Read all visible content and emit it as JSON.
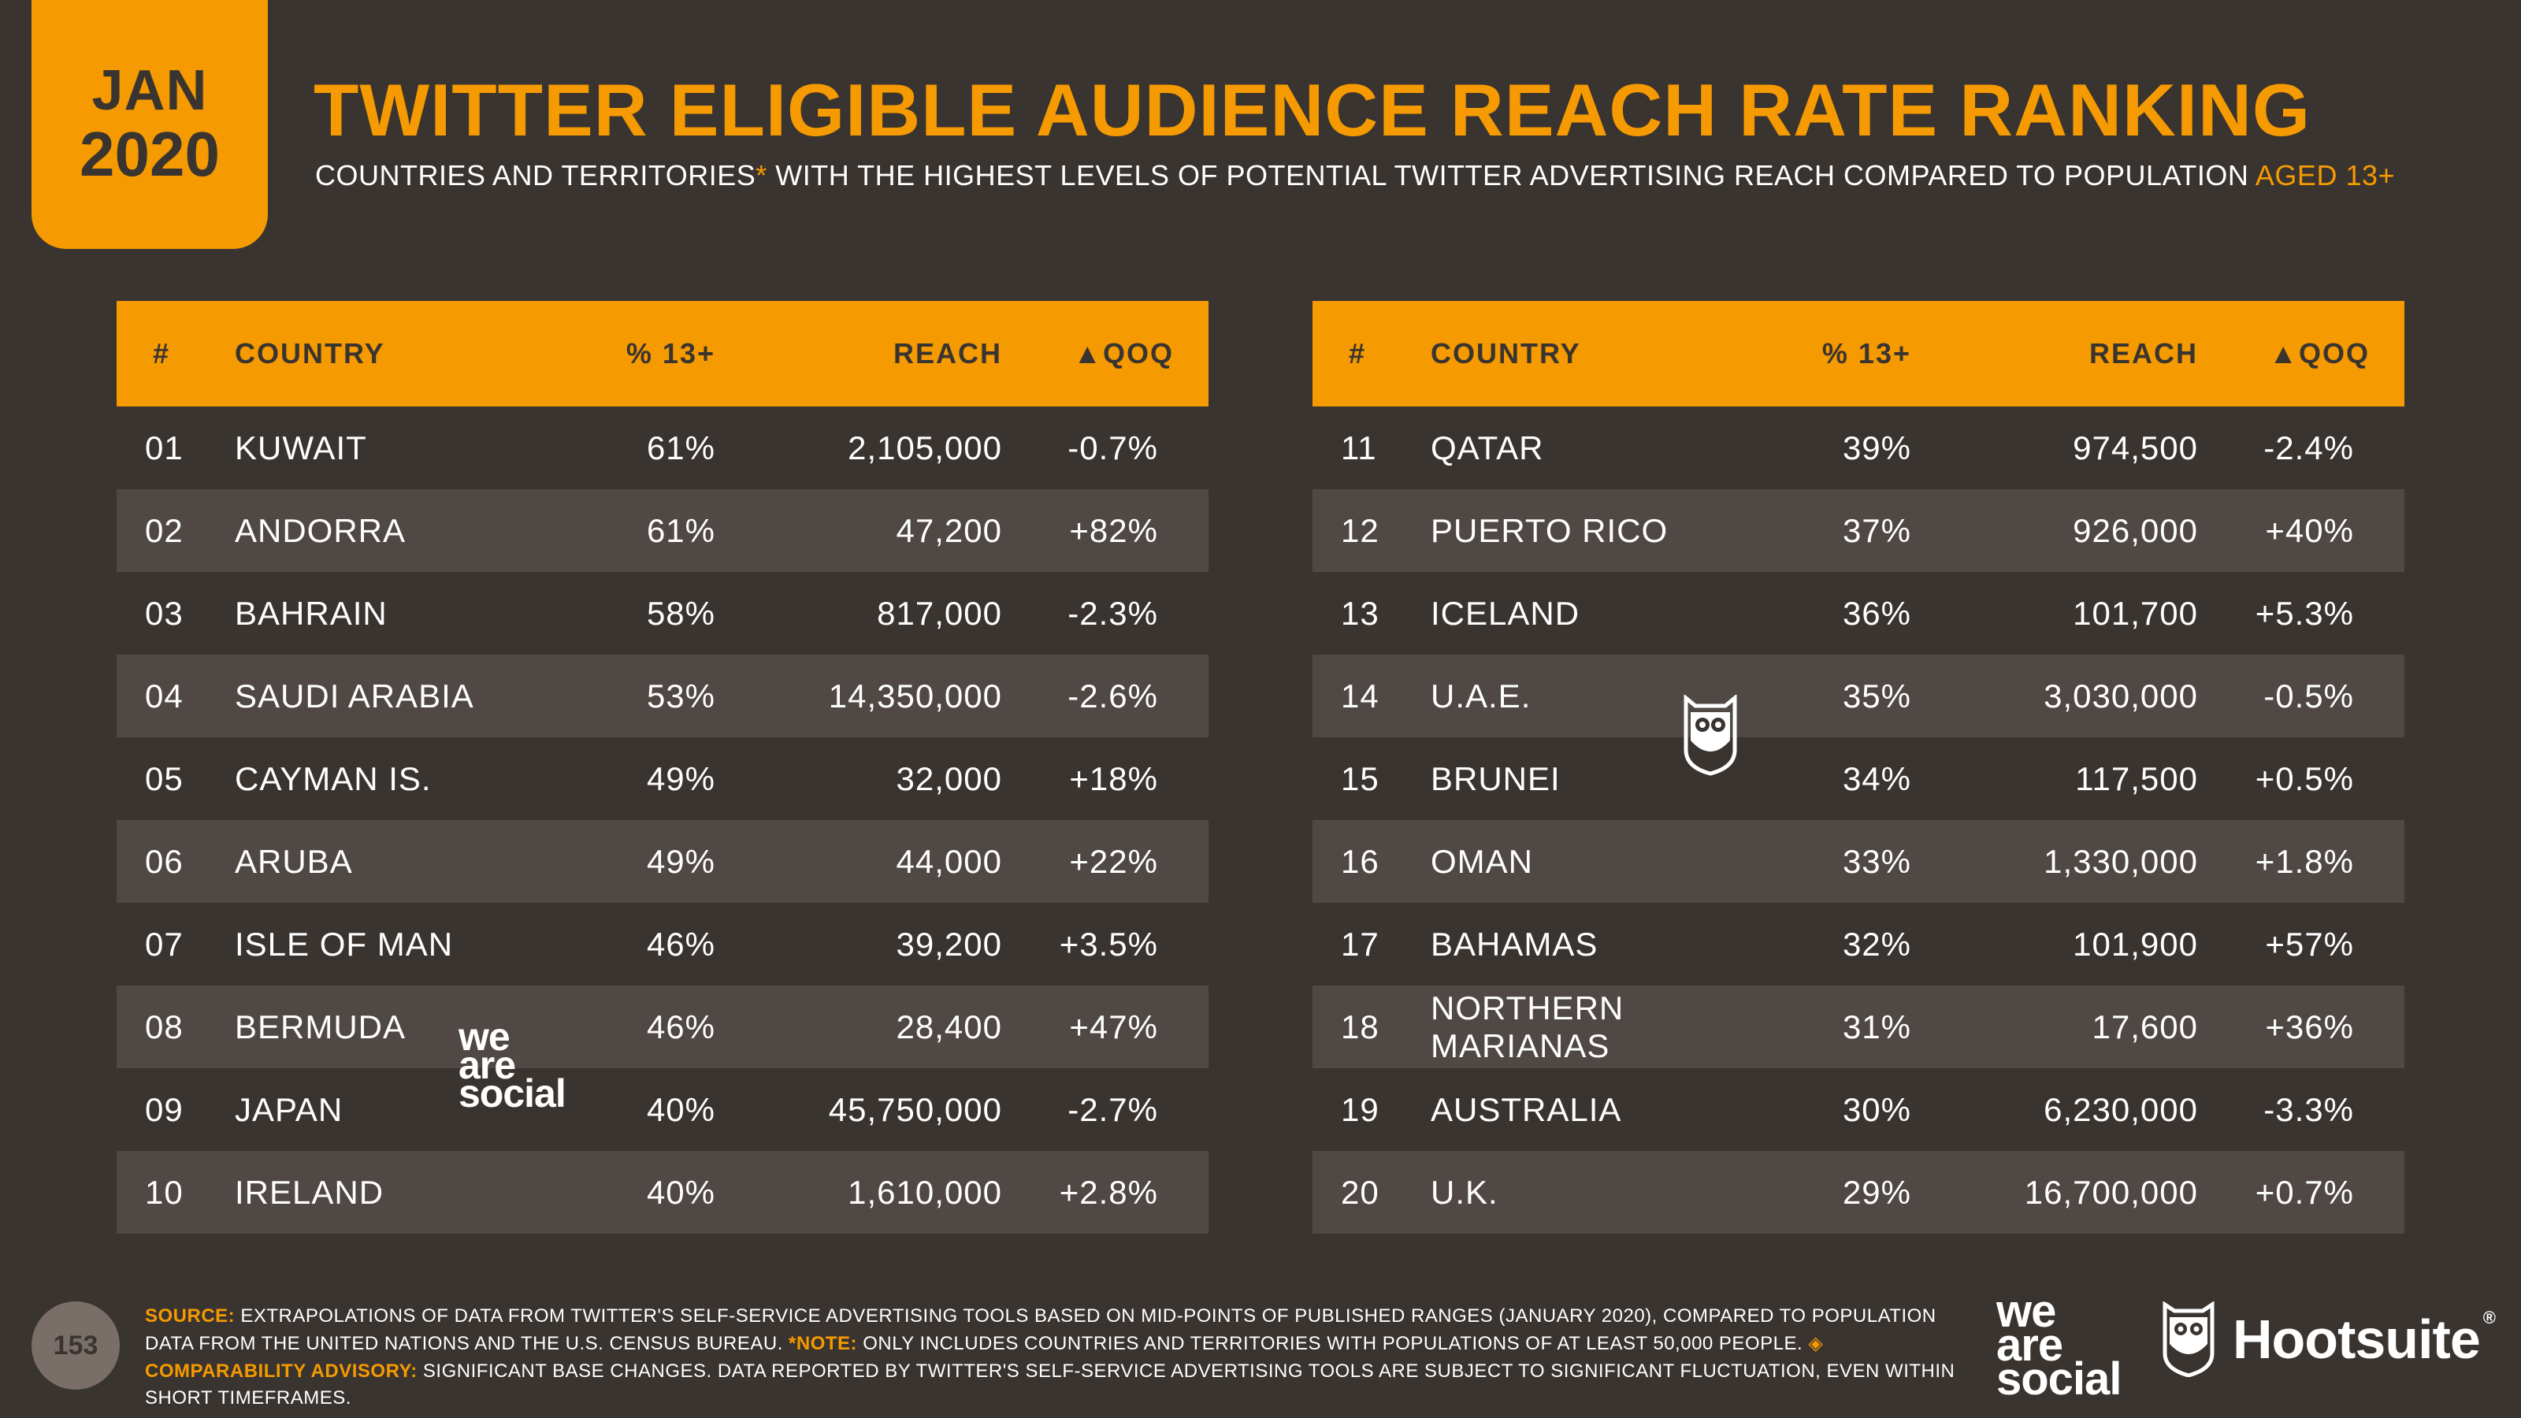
{
  "badge": {
    "month": "JAN",
    "year": "2020"
  },
  "title": "TWITTER ELIGIBLE AUDIENCE REACH RATE RANKING",
  "subtitle": {
    "main": "COUNTRIES AND TERRITORIES",
    "asterisk": "*",
    "rest": " WITH THE HIGHEST LEVELS OF POTENTIAL TWITTER ADVERTISING REACH COMPARED TO POPULATION ",
    "age": "AGED 13+"
  },
  "table_headers": {
    "num": "#",
    "country": "COUNTRY",
    "pct": "% 13+",
    "reach": "REACH",
    "qoq": "▲QOQ"
  },
  "left_rows": [
    {
      "num": "01",
      "country": "KUWAIT",
      "pct": "61%",
      "reach": "2,105,000",
      "qoq": "-0.7%"
    },
    {
      "num": "02",
      "country": "ANDORRA",
      "pct": "61%",
      "reach": "47,200",
      "qoq": "+82%"
    },
    {
      "num": "03",
      "country": "BAHRAIN",
      "pct": "58%",
      "reach": "817,000",
      "qoq": "-2.3%"
    },
    {
      "num": "04",
      "country": "SAUDI ARABIA",
      "pct": "53%",
      "reach": "14,350,000",
      "qoq": "-2.6%"
    },
    {
      "num": "05",
      "country": "CAYMAN IS.",
      "pct": "49%",
      "reach": "32,000",
      "qoq": "+18%"
    },
    {
      "num": "06",
      "country": "ARUBA",
      "pct": "49%",
      "reach": "44,000",
      "qoq": "+22%"
    },
    {
      "num": "07",
      "country": "ISLE OF MAN",
      "pct": "46%",
      "reach": "39,200",
      "qoq": "+3.5%"
    },
    {
      "num": "08",
      "country": "BERMUDA",
      "pct": "46%",
      "reach": "28,400",
      "qoq": "+47%"
    },
    {
      "num": "09",
      "country": "JAPAN",
      "pct": "40%",
      "reach": "45,750,000",
      "qoq": "-2.7%"
    },
    {
      "num": "10",
      "country": "IRELAND",
      "pct": "40%",
      "reach": "1,610,000",
      "qoq": "+2.8%"
    }
  ],
  "right_rows": [
    {
      "num": "11",
      "country": "QATAR",
      "pct": "39%",
      "reach": "974,500",
      "qoq": "-2.4%"
    },
    {
      "num": "12",
      "country": "PUERTO RICO",
      "pct": "37%",
      "reach": "926,000",
      "qoq": "+40%"
    },
    {
      "num": "13",
      "country": "ICELAND",
      "pct": "36%",
      "reach": "101,700",
      "qoq": "+5.3%"
    },
    {
      "num": "14",
      "country": "U.A.E.",
      "pct": "35%",
      "reach": "3,030,000",
      "qoq": "-0.5%"
    },
    {
      "num": "15",
      "country": "BRUNEI",
      "pct": "34%",
      "reach": "117,500",
      "qoq": "+0.5%"
    },
    {
      "num": "16",
      "country": "OMAN",
      "pct": "33%",
      "reach": "1,330,000",
      "qoq": "+1.8%"
    },
    {
      "num": "17",
      "country": "BAHAMAS",
      "pct": "32%",
      "reach": "101,900",
      "qoq": "+57%"
    },
    {
      "num": "18",
      "country": "NORTHERN MARIANAS",
      "pct": "31%",
      "reach": "17,600",
      "qoq": "+36%"
    },
    {
      "num": "19",
      "country": "AUSTRALIA",
      "pct": "30%",
      "reach": "6,230,000",
      "qoq": "-3.3%"
    },
    {
      "num": "20",
      "country": "U.K.",
      "pct": "29%",
      "reach": "16,700,000",
      "qoq": "+0.7%"
    }
  ],
  "watermark": {
    "line1": "we",
    "line2": "are",
    "line3": "social"
  },
  "footer": {
    "page_number": "153",
    "source_label": "SOURCE:",
    "source_text": " EXTRAPOLATIONS OF DATA FROM TWITTER'S SELF-SERVICE ADVERTISING TOOLS BASED ON MID-POINTS OF PUBLISHED RANGES (JANUARY 2020), COMPARED TO POPULATION DATA FROM THE UNITED NATIONS AND THE U.S. CENSUS BUREAU. ",
    "note_label": "*NOTE:",
    "note_text": " ONLY INCLUDES COUNTRIES AND TERRITORIES WITH POPULATIONS OF AT LEAST 50,000 PEOPLE. ",
    "advisory_label": "◈ COMPARABILITY ADVISORY:",
    "advisory_text": " SIGNIFICANT BASE CHANGES. DATA REPORTED BY TWITTER'S SELF-SERVICE ADVERTISING TOOLS ARE SUBJECT TO SIGNIFICANT FLUCTUATION, EVEN WITHIN SHORT TIMEFRAMES."
  },
  "logos": {
    "was_1": "we",
    "was_2": "are",
    "was_3": "social",
    "hootsuite": "Hootsuite",
    "reg": "®"
  },
  "colors": {
    "accent": "#f59a00",
    "background": "#3a3430",
    "row_alt": "#4f4844"
  }
}
